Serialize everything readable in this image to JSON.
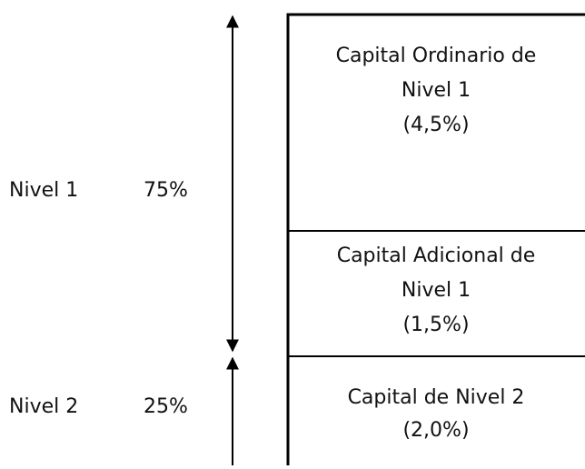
{
  "tiers": [
    {
      "label": "Nivel 1",
      "share": "75%"
    },
    {
      "label": "Nivel 2",
      "share": "25%"
    }
  ],
  "boxes": [
    {
      "lines": [
        "Capital Ordinario de",
        "Nivel 1",
        "(4,5%)"
      ]
    },
    {
      "lines": [
        "Capital Adicional de",
        "Nivel 1",
        "(1,5%)"
      ]
    },
    {
      "lines": [
        "Capital de Nivel 2",
        "(2,0%)"
      ]
    }
  ]
}
